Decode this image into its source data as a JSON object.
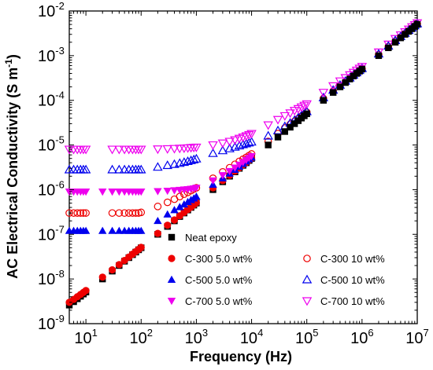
{
  "chart_data": {
    "type": "scatter",
    "x_scale": "log",
    "y_scale": "log",
    "xlim": [
      5,
      10000000
    ],
    "ylim": [
      1e-09,
      0.01
    ],
    "xlabel": "Frequency (Hz)",
    "ylabel_main": "AC Electrical Conductivity (S m",
    "ylabel_sup": "-1",
    "ylabel_close": ")",
    "grid": false,
    "legend_position": "bottom-right",
    "x_ticks": [
      {
        "value": 10,
        "base": "10",
        "exp": "1"
      },
      {
        "value": 100,
        "base": "10",
        "exp": "2"
      },
      {
        "value": 1000,
        "base": "10",
        "exp": "3"
      },
      {
        "value": 10000,
        "base": "10",
        "exp": "4"
      },
      {
        "value": 100000,
        "base": "10",
        "exp": "5"
      },
      {
        "value": 1000000,
        "base": "10",
        "exp": "6"
      },
      {
        "value": 10000000,
        "base": "10",
        "exp": "7"
      }
    ],
    "y_ticks": [
      {
        "value": 1e-09,
        "base": "10",
        "exp": "-9"
      },
      {
        "value": 1e-08,
        "base": "10",
        "exp": "-8"
      },
      {
        "value": 1e-07,
        "base": "10",
        "exp": "-7"
      },
      {
        "value": 1e-06,
        "base": "10",
        "exp": "-6"
      },
      {
        "value": 1e-05,
        "base": "10",
        "exp": "-5"
      },
      {
        "value": 0.0001,
        "base": "10",
        "exp": "-4"
      },
      {
        "value": 0.001,
        "base": "10",
        "exp": "-3"
      },
      {
        "value": 0.01,
        "base": "10",
        "exp": "-2"
      }
    ],
    "series": [
      {
        "name": "Neat epoxy",
        "marker": "square",
        "filled": true,
        "color": "#000000",
        "x": [
          5,
          6,
          7,
          8,
          9,
          10,
          20,
          30,
          40,
          50,
          60,
          70,
          80,
          90,
          100,
          200,
          300,
          400,
          500,
          600,
          700,
          800,
          900,
          1000,
          2000,
          3000,
          4000,
          5000,
          6000,
          7000,
          8000,
          9000,
          10000,
          20000,
          30000,
          40000,
          50000,
          60000,
          70000,
          80000,
          90000,
          100000,
          200000,
          300000,
          400000,
          500000,
          600000,
          700000,
          800000,
          900000,
          1000000,
          2000000,
          3000000,
          4000000,
          5000000,
          6000000,
          7000000,
          8000000,
          9000000,
          10000000
        ],
        "y": [
          2.6e-09,
          3.1e-09,
          3.6e-09,
          4.1e-09,
          4.6e-09,
          5.1e-09,
          1e-08,
          1.5e-08,
          2e-08,
          2.5e-08,
          3e-08,
          3.5e-08,
          4e-08,
          4.5e-08,
          5e-08,
          1e-07,
          1.5e-07,
          2e-07,
          2.5e-07,
          3e-07,
          3.5e-07,
          4e-07,
          4.5e-07,
          5e-07,
          1e-06,
          1.5e-06,
          2e-06,
          2.5e-06,
          3e-06,
          3.5e-06,
          4e-06,
          4.5e-06,
          5e-06,
          1e-05,
          1.5e-05,
          2e-05,
          2.5e-05,
          3e-05,
          3.5e-05,
          4e-05,
          4.5e-05,
          5e-05,
          0.0001,
          0.00015,
          0.0002,
          0.00025,
          0.0003,
          0.00035,
          0.0004,
          0.00045,
          0.0005,
          0.001,
          0.0015,
          0.002,
          0.0025,
          0.003,
          0.0035,
          0.004,
          0.0045,
          0.005
        ]
      },
      {
        "name": "C-300 5.0 wt%",
        "marker": "circle",
        "filled": true,
        "color": "#ee0000",
        "x": [
          5,
          6,
          7,
          8,
          9,
          10,
          20,
          30,
          40,
          50,
          60,
          70,
          80,
          90,
          100,
          200,
          300,
          400,
          500,
          600,
          700,
          800,
          900,
          1000,
          2000,
          3000,
          4000,
          5000,
          6000,
          7000,
          8000,
          9000,
          10000
        ],
        "y": [
          3e-09,
          3.5e-09,
          4e-09,
          4.5e-09,
          5e-09,
          5.5e-09,
          1.1e-08,
          1.6e-08,
          2.1e-08,
          2.6e-08,
          3.1e-08,
          3.6e-08,
          4.1e-08,
          4.6e-08,
          5.1e-08,
          1.05e-07,
          1.6e-07,
          2.1e-07,
          2.6e-07,
          3.1e-07,
          3.6e-07,
          4.1e-07,
          4.6e-07,
          5.1e-07,
          1.1e-06,
          1.6e-06,
          2.1e-06,
          2.6e-06,
          3.1e-06,
          3.6e-06,
          4.1e-06,
          4.6e-06,
          5.1e-06
        ]
      },
      {
        "name": "C-500 5.0 wt%",
        "marker": "triangle-up",
        "filled": true,
        "color": "#0000ee",
        "x": [
          5,
          6,
          7,
          8,
          9,
          10,
          20,
          30,
          40,
          50,
          60,
          70,
          80,
          90,
          100,
          200,
          300,
          400,
          500,
          600,
          700,
          800,
          900,
          1000,
          2000,
          3000,
          4000,
          5000,
          6000,
          7000,
          8000,
          9000,
          10000
        ],
        "y": [
          1.2e-07,
          1.2e-07,
          1.2e-07,
          1.2e-07,
          1.2e-07,
          1.2e-07,
          1.2e-07,
          1.2e-07,
          1.2e-07,
          1.2e-07,
          1.2e-07,
          1.2e-07,
          1.2e-07,
          1.2e-07,
          1.2e-07,
          2e-07,
          2.8e-07,
          3.5e-07,
          4.1e-07,
          4.7e-07,
          5.3e-07,
          5.9e-07,
          6.4e-07,
          7e-07,
          1.3e-06,
          1.8e-06,
          2.3e-06,
          2.8e-06,
          3.3e-06,
          3.8e-06,
          4.3e-06,
          4.8e-06,
          5.3e-06
        ]
      },
      {
        "name": "C-700 5.0 wt%",
        "marker": "triangle-down",
        "filled": true,
        "color": "#ee00ee",
        "x": [
          5,
          6,
          7,
          8,
          9,
          10,
          20,
          30,
          40,
          50,
          60,
          70,
          80,
          90,
          100,
          200,
          300,
          400,
          500,
          600,
          700,
          800,
          900,
          1000,
          2000,
          3000,
          4000,
          5000,
          6000,
          7000,
          8000,
          9000,
          10000
        ],
        "y": [
          9e-07,
          9e-07,
          9e-07,
          9e-07,
          9e-07,
          9e-07,
          9e-07,
          9e-07,
          9e-07,
          9e-07,
          9e-07,
          9e-07,
          9e-07,
          9e-07,
          9e-07,
          9.2e-07,
          9.4e-07,
          9.6e-07,
          9.8e-07,
          1e-06,
          1.02e-06,
          1.04e-06,
          1.06e-06,
          1.1e-06,
          1.6e-06,
          2.1e-06,
          2.6e-06,
          3.1e-06,
          3.6e-06,
          4.1e-06,
          4.6e-06,
          5.1e-06,
          5.6e-06
        ]
      },
      {
        "name": "C-300 10 wt%",
        "marker": "circle",
        "filled": false,
        "color": "#ee0000",
        "x": [
          5,
          6,
          7,
          8,
          9,
          10,
          30,
          40,
          50,
          60,
          70,
          80,
          90,
          100,
          200,
          300,
          400,
          500,
          600,
          700,
          800,
          900,
          1000,
          2000,
          3000,
          4000,
          5000,
          6000,
          7000,
          8000,
          9000,
          10000,
          20000,
          30000,
          40000,
          50000,
          60000,
          70000,
          80000,
          90000,
          100000,
          200000,
          300000,
          400000,
          500000,
          600000,
          700000,
          800000,
          900000,
          1000000,
          2000000,
          3000000,
          4000000,
          5000000,
          6000000,
          7000000,
          8000000,
          9000000,
          10000000
        ],
        "y": [
          3e-07,
          3e-07,
          3e-07,
          3e-07,
          3e-07,
          3e-07,
          3e-07,
          3e-07,
          3e-07,
          3e-07,
          3e-07,
          3e-07,
          3e-07,
          3.1e-07,
          4.2e-07,
          5.2e-07,
          6.1e-07,
          7e-07,
          7.9e-07,
          8.7e-07,
          9.5e-07,
          1.03e-06,
          1.1e-06,
          1.8e-06,
          2.5e-06,
          3.1e-06,
          3.7e-06,
          4.3e-06,
          4.8e-06,
          5.3e-06,
          5.8e-06,
          6.3e-06,
          1.2e-05,
          1.8e-05,
          2.4e-05,
          2.9e-05,
          3.4e-05,
          3.9e-05,
          4.4e-05,
          4.9e-05,
          5.4e-05,
          0.00011,
          0.00016,
          0.00021,
          0.00026,
          0.00031,
          0.00036,
          0.00041,
          0.00046,
          0.00051,
          0.00105,
          0.0016,
          0.0021,
          0.0026,
          0.0031,
          0.0036,
          0.0041,
          0.0046,
          0.0051
        ]
      },
      {
        "name": "C-500 10 wt%",
        "marker": "triangle-up",
        "filled": false,
        "color": "#0000ee",
        "x": [
          5,
          6,
          7,
          8,
          9,
          10,
          30,
          40,
          50,
          60,
          70,
          80,
          90,
          100,
          200,
          300,
          400,
          500,
          600,
          700,
          800,
          900,
          1000,
          2000,
          3000,
          4000,
          5000,
          6000,
          7000,
          8000,
          9000,
          10000,
          20000,
          30000,
          40000,
          50000,
          60000,
          70000,
          80000,
          90000,
          100000,
          200000,
          300000,
          400000,
          500000,
          600000,
          700000,
          800000,
          900000,
          1000000,
          2000000,
          3000000,
          4000000,
          5000000,
          6000000,
          7000000,
          8000000,
          9000000,
          10000000
        ],
        "y": [
          2.8e-06,
          2.8e-06,
          2.8e-06,
          2.8e-06,
          2.8e-06,
          2.8e-06,
          2.8e-06,
          2.8e-06,
          2.8e-06,
          2.8e-06,
          2.8e-06,
          2.8e-06,
          2.8e-06,
          2.8e-06,
          3.2e-06,
          3.5e-06,
          3.7e-06,
          3.9e-06,
          4.1e-06,
          4.3e-06,
          4.5e-06,
          4.7e-06,
          4.9e-06,
          6.5e-06,
          7.5e-06,
          8.3e-06,
          9e-06,
          9.6e-06,
          1.02e-05,
          1.07e-05,
          1.12e-05,
          1.17e-05,
          1.6e-05,
          2.1e-05,
          2.6e-05,
          3.1e-05,
          3.6e-05,
          4.1e-05,
          4.6e-05,
          5.1e-05,
          5.6e-05,
          0.000115,
          0.00017,
          0.00022,
          0.00027,
          0.00032,
          0.00037,
          0.00042,
          0.00047,
          0.00052,
          0.0011,
          0.00165,
          0.0022,
          0.0027,
          0.0032,
          0.0037,
          0.0042,
          0.0047,
          0.0052
        ]
      },
      {
        "name": "C-700 10 wt%",
        "marker": "triangle-down",
        "filled": false,
        "color": "#ee00ee",
        "x": [
          5,
          6,
          7,
          8,
          9,
          10,
          30,
          40,
          50,
          60,
          70,
          80,
          90,
          100,
          200,
          300,
          400,
          500,
          600,
          700,
          800,
          900,
          1000,
          2000,
          3000,
          4000,
          5000,
          6000,
          7000,
          8000,
          9000,
          10000,
          20000,
          30000,
          40000,
          50000,
          60000,
          70000,
          80000,
          90000,
          100000,
          200000,
          300000,
          400000,
          500000,
          600000,
          700000,
          800000,
          900000,
          1000000,
          2000000,
          3000000,
          4000000,
          5000000,
          6000000,
          7000000,
          8000000,
          9000000,
          10000000
        ],
        "y": [
          8e-06,
          8e-06,
          8e-06,
          8e-06,
          8e-06,
          8e-06,
          8e-06,
          8e-06,
          8e-06,
          8e-06,
          8e-06,
          8e-06,
          8e-06,
          8e-06,
          8.1e-06,
          8.2e-06,
          8.3e-06,
          8.4e-06,
          8.5e-06,
          8.6e-06,
          8.7e-06,
          8.8e-06,
          8.9e-06,
          1e-05,
          1.1e-05,
          1.2e-05,
          1.3e-05,
          1.4e-05,
          1.5e-05,
          1.6e-05,
          1.7e-05,
          1.8e-05,
          2.8e-05,
          3.7e-05,
          4.5e-05,
          5.2e-05,
          5.9e-05,
          6.5e-05,
          7.1e-05,
          7.7e-05,
          8.3e-05,
          0.00015,
          0.00021,
          0.00027,
          0.00032,
          0.00037,
          0.00042,
          0.00047,
          0.00052,
          0.00057,
          0.0012,
          0.0018,
          0.0024,
          0.0029,
          0.0034,
          0.0039,
          0.0044,
          0.0049,
          0.0054
        ]
      }
    ]
  }
}
